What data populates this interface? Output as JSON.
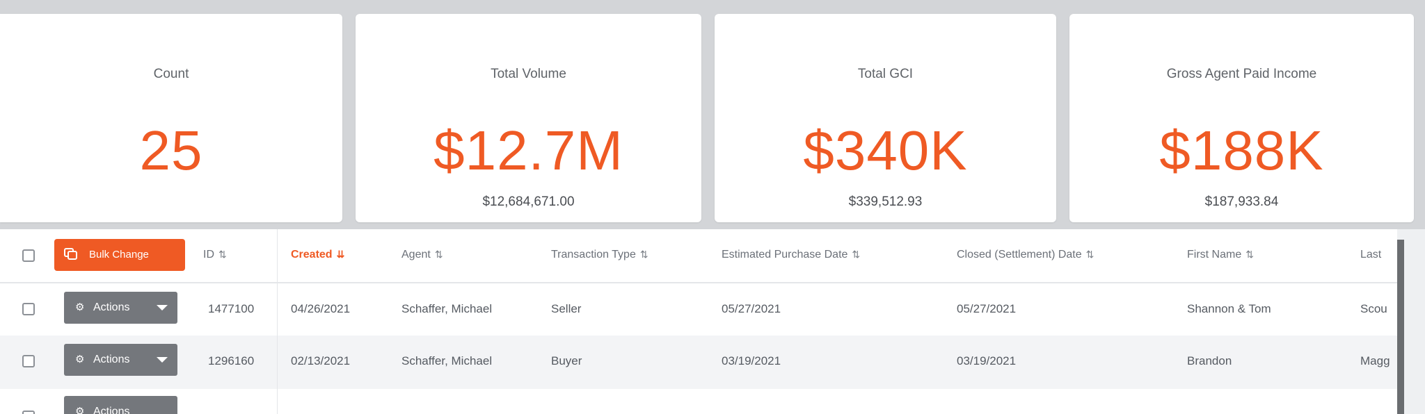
{
  "stats": [
    {
      "label": "Count",
      "value": "25",
      "exact": ""
    },
    {
      "label": "Total Volume",
      "value": "$12.7M",
      "exact": "$12,684,671.00"
    },
    {
      "label": "Total GCI",
      "value": "$340K",
      "exact": "$339,512.93"
    },
    {
      "label": "Gross Agent Paid Income",
      "value": "$188K",
      "exact": "$187,933.84"
    }
  ],
  "table": {
    "bulk_change_label": "Bulk Change",
    "columns": [
      {
        "label": "ID",
        "sort": "⇅"
      },
      {
        "label": "Created",
        "sort": "⇊"
      },
      {
        "label": "Agent",
        "sort": "⇅"
      },
      {
        "label": "Transaction Type",
        "sort": "⇅"
      },
      {
        "label": "Estimated Purchase Date",
        "sort": "⇅"
      },
      {
        "label": "Closed (Settlement) Date",
        "sort": "⇅"
      },
      {
        "label": "First Name",
        "sort": "⇅"
      },
      {
        "label": "Last",
        "sort": ""
      }
    ],
    "actions_label": "Actions",
    "rows": [
      {
        "id": "1477100",
        "created": "04/26/2021",
        "agent": "Schaffer, Michael",
        "type": "Seller",
        "est_purchase": "05/27/2021",
        "closed": "05/27/2021",
        "first_name": "Shannon & Tom",
        "last_name": "Scou"
      },
      {
        "id": "1296160",
        "created": "02/13/2021",
        "agent": "Schaffer, Michael",
        "type": "Buyer",
        "est_purchase": "03/19/2021",
        "closed": "03/19/2021",
        "first_name": "Brandon",
        "last_name": "Magg"
      }
    ]
  },
  "colors": {
    "accent": "#ef5a24",
    "actions_button": "#74777c",
    "page_bg": "#d3d5d8"
  },
  "icons": {
    "bulk": "copy-icon",
    "gear": "gear-icon",
    "caret": "caret-down-icon",
    "sort": "sort-icon"
  }
}
